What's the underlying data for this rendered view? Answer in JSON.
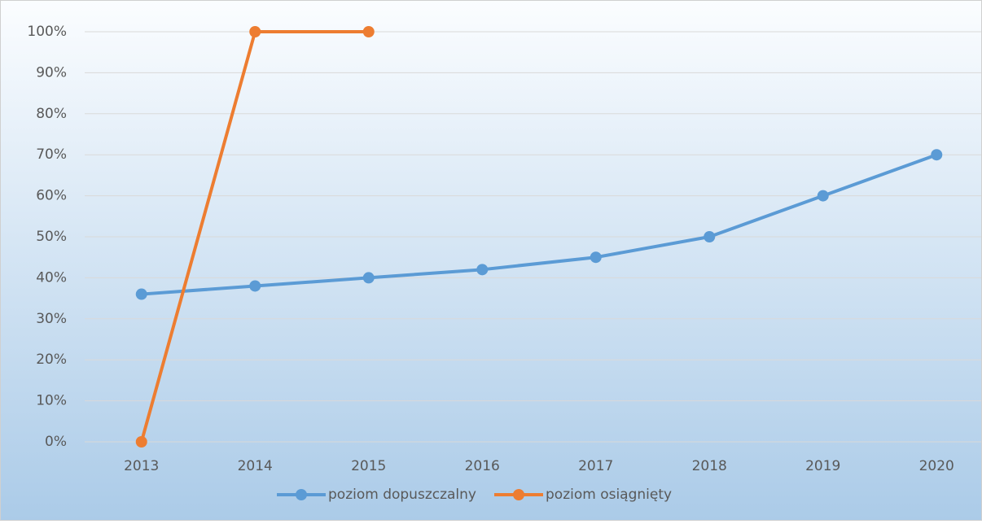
{
  "chart_data": {
    "type": "line",
    "categories": [
      "2013",
      "2014",
      "2015",
      "2016",
      "2017",
      "2018",
      "2019",
      "2020"
    ],
    "series": [
      {
        "name": "poziom dopuszczalny",
        "color": "#5b9bd5",
        "values": [
          36,
          38,
          40,
          42,
          45,
          50,
          60,
          70
        ]
      },
      {
        "name": "poziom osiągnięty",
        "color": "#ed7d31",
        "values": [
          0,
          100,
          100,
          null,
          null,
          null,
          null,
          null
        ]
      }
    ],
    "ylim": [
      0,
      100
    ],
    "yticks": [
      {
        "value": 0,
        "label": "0%"
      },
      {
        "value": 10,
        "label": "10%"
      },
      {
        "value": 20,
        "label": "20%"
      },
      {
        "value": 30,
        "label": "30%"
      },
      {
        "value": 40,
        "label": "40%"
      },
      {
        "value": 50,
        "label": "50%"
      },
      {
        "value": 60,
        "label": "60%"
      },
      {
        "value": 70,
        "label": "70%"
      },
      {
        "value": 80,
        "label": "80%"
      },
      {
        "value": 90,
        "label": "90%"
      },
      {
        "value": 100,
        "label": "100%"
      }
    ],
    "grid": true,
    "legend": "bottom"
  }
}
